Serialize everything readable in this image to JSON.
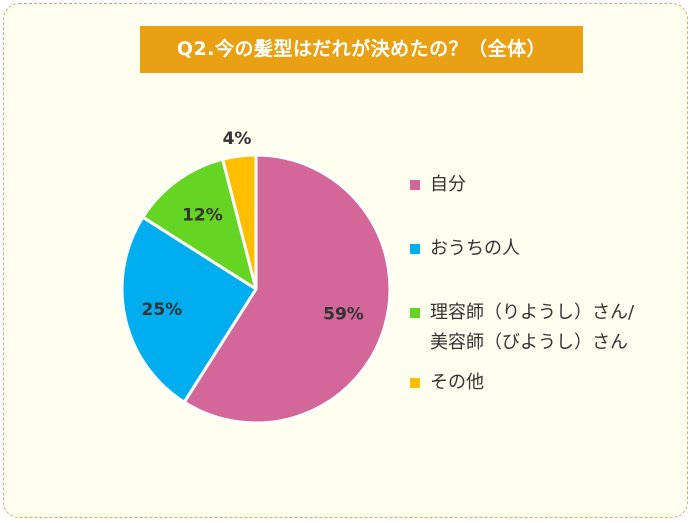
{
  "title": "Q2.今の髪型はだれが決めたの？（全体）",
  "chart_data": {
    "type": "pie",
    "title": "Q2.今の髪型はだれが決めたの？（全体）",
    "slices": [
      {
        "label": "自分",
        "value": 59,
        "display": "59%",
        "color": "#d4679a"
      },
      {
        "label": "おうちの人",
        "value": 25,
        "display": "25%",
        "color": "#00aeef"
      },
      {
        "label": "理容師（りようし）さん/\n美容師（びようし）さん",
        "value": 12,
        "display": "12%",
        "color": "#66d422"
      },
      {
        "label": "その他",
        "value": 4,
        "display": "4%",
        "color": "#ffbf00"
      }
    ],
    "legend_position": "right"
  }
}
